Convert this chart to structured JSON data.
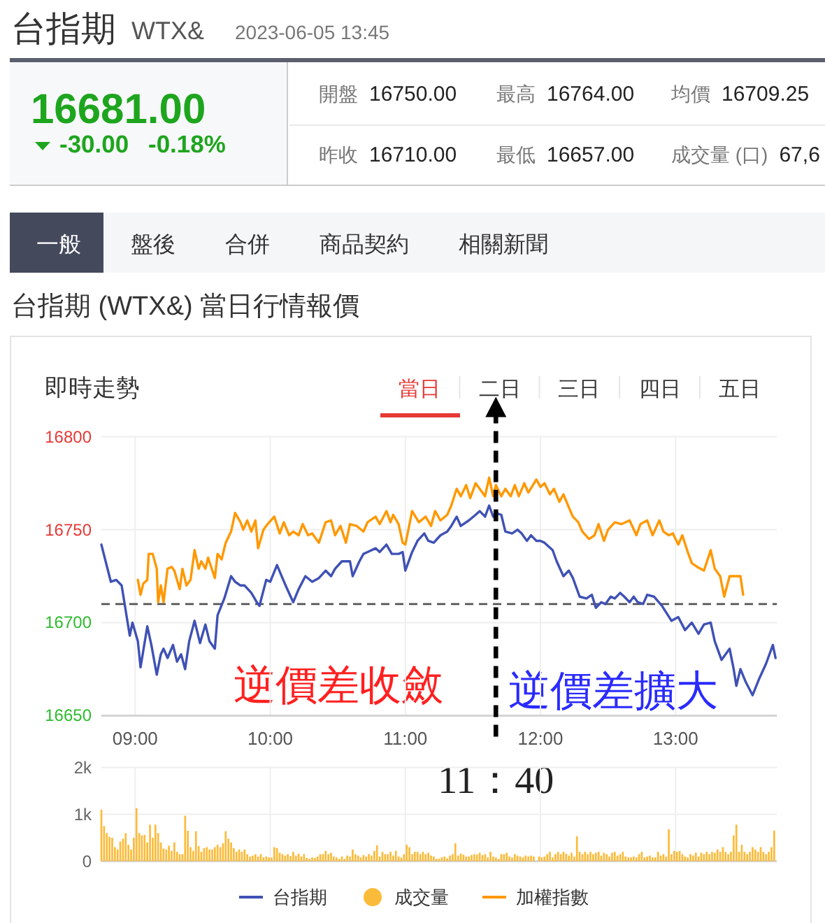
{
  "chart_data": [
    {
      "type": "other",
      "title": "台指期",
      "subtitle": "WTX&",
      "annotations": [
        "2023-06-05 13:45",
        "16681.00",
        "-30.00",
        "-0.18%",
        "開盤",
        "16750.00",
        "最高",
        "16764.00",
        "均價",
        "16709.25",
        "昨收",
        "16710.00",
        "最低",
        "16657.00",
        "成交量 (口)",
        "67,6",
        "一般",
        "盤後",
        "合併",
        "商品契約",
        "相關新聞",
        "台指期 (WTX&) 當日行情報價"
      ]
    },
    {
      "type": "line",
      "title": "即時走勢",
      "annotations": [
        "當日",
        "二日",
        "三日",
        "四日",
        "五日",
        "逆價差收斂",
        "逆價差擴大"
      ],
      "xlim": [
        8.75,
        13.75
      ],
      "xticks": [
        {
          "value": 9,
          "label": "09:00"
        },
        {
          "value": 10,
          "label": "10:00"
        },
        {
          "value": 11,
          "label": "11:00"
        },
        {
          "value": 12,
          "label": "12:00"
        },
        {
          "value": 13,
          "label": "13:00"
        }
      ],
      "ylim": [
        16650,
        16800
      ],
      "yticks": [
        16650,
        16700,
        16750,
        16800
      ],
      "grid": true,
      "legend": "bottom",
      "ref_lines": [
        {
          "axis": "y",
          "value": 16710,
          "color": "#555555",
          "line_style": "dashed"
        },
        {
          "axis": "x",
          "value": 11.67,
          "label": "11：40",
          "color": "#000000",
          "line_style": "dashed"
        }
      ],
      "series": [
        {
          "name": "台指期",
          "color": "#3f51b5",
          "x": [
            8.75,
            8.82,
            8.86,
            8.9,
            8.96,
            8.98,
            9.02,
            9.04,
            9.09,
            9.12,
            9.16,
            9.19,
            9.21,
            9.24,
            9.28,
            9.31,
            9.34,
            9.37,
            9.4,
            9.44,
            9.48,
            9.52,
            9.55,
            9.59,
            9.61,
            9.66,
            9.71,
            9.74,
            9.78,
            9.81,
            9.86,
            9.9,
            9.92,
            9.97,
            10.0,
            10.05,
            10.09,
            10.12,
            10.17,
            10.21,
            10.26,
            10.31,
            10.36,
            10.41,
            10.45,
            10.48,
            10.53,
            10.59,
            10.61,
            10.66,
            10.69,
            10.72,
            10.78,
            10.81,
            10.86,
            10.9,
            10.95,
            10.98,
            11.0,
            11.03,
            11.05,
            11.09,
            11.14,
            11.17,
            11.21,
            11.26,
            11.31,
            11.34,
            11.38,
            11.41,
            11.47,
            11.52,
            11.55,
            11.59,
            11.62,
            11.65,
            11.67,
            11.71,
            11.74,
            11.79,
            11.83,
            11.86,
            11.9,
            11.93,
            11.97,
            12.0,
            12.03,
            12.09,
            12.12,
            12.17,
            12.21,
            12.24,
            12.29,
            12.34,
            12.38,
            12.41,
            12.45,
            12.48,
            12.52,
            12.55,
            12.59,
            12.62,
            12.66,
            12.69,
            12.72,
            12.76,
            12.79,
            12.84,
            12.9,
            12.97,
            13.02,
            13.07,
            13.12,
            13.17,
            13.21,
            13.26,
            13.29,
            13.34,
            13.4,
            13.43,
            13.45,
            13.48,
            13.52,
            13.57,
            13.62,
            13.67,
            13.72,
            13.74
          ],
          "values": [
            16742,
            16722,
            16723,
            16720,
            16693,
            16700,
            16690,
            16676,
            16698,
            16688,
            16672,
            16683,
            16686,
            16681,
            16688,
            16679,
            16683,
            16675,
            16690,
            16701,
            16689,
            16699,
            16690,
            16686,
            16704,
            16713,
            16725,
            16722,
            16720,
            16720,
            16716,
            16711,
            16709,
            16723,
            16722,
            16731,
            16724,
            16719,
            16711,
            16718,
            16725,
            16722,
            16724,
            16728,
            16725,
            16729,
            16733,
            16733,
            16725,
            16733,
            16737,
            16738,
            16740,
            16738,
            16742,
            16737,
            16737,
            16738,
            16728,
            16734,
            16738,
            16744,
            16748,
            16744,
            16743,
            16747,
            16749,
            16752,
            16757,
            16752,
            16755,
            16758,
            16760,
            16757,
            16763,
            16757,
            16759,
            16758,
            16749,
            16748,
            16750,
            16748,
            16744,
            16747,
            16744,
            16744,
            16743,
            16739,
            16733,
            16725,
            16728,
            16724,
            16714,
            16713,
            16715,
            16708,
            16711,
            16710,
            16714,
            16713,
            16716,
            16714,
            16711,
            16714,
            16711,
            16710,
            16715,
            16714,
            16709,
            16701,
            16703,
            16696,
            16700,
            16694,
            16699,
            16700,
            16690,
            16680,
            16686,
            16675,
            16666,
            16675,
            16668,
            16661,
            16670,
            16678,
            16688,
            16681
          ]
        },
        {
          "name": "加權指數",
          "color": "#ff9800",
          "x": [
            9.02,
            9.04,
            9.06,
            9.09,
            9.1,
            9.13,
            9.16,
            9.17,
            9.19,
            9.21,
            9.24,
            9.27,
            9.29,
            9.33,
            9.35,
            9.38,
            9.41,
            9.44,
            9.47,
            9.49,
            9.52,
            9.54,
            9.59,
            9.61,
            9.64,
            9.67,
            9.71,
            9.74,
            9.78,
            9.8,
            9.83,
            9.86,
            9.89,
            9.91,
            9.95,
            9.98,
            10.03,
            10.07,
            10.1,
            10.14,
            10.17,
            10.21,
            10.24,
            10.28,
            10.31,
            10.36,
            10.41,
            10.45,
            10.48,
            10.52,
            10.56,
            10.59,
            10.64,
            10.69,
            10.72,
            10.78,
            10.81,
            10.86,
            10.89,
            10.91,
            10.95,
            10.98,
            11.0,
            11.05,
            11.1,
            11.15,
            11.19,
            11.22,
            11.26,
            11.31,
            11.34,
            11.38,
            11.41,
            11.45,
            11.48,
            11.52,
            11.55,
            11.59,
            11.62,
            11.65,
            11.67,
            11.71,
            11.74,
            11.78,
            11.81,
            11.84,
            11.88,
            11.91,
            11.97,
            12.0,
            12.03,
            12.07,
            12.1,
            12.14,
            12.17,
            12.21,
            12.24,
            12.28,
            12.31,
            12.36,
            12.4,
            12.43,
            12.47,
            12.5,
            12.55,
            12.6,
            12.66,
            12.71,
            12.74,
            12.79,
            12.83,
            12.88,
            12.91,
            12.95,
            12.98,
            13.02,
            13.05,
            13.09,
            13.12,
            13.16,
            13.21,
            13.26,
            13.29,
            13.33,
            13.36,
            13.4,
            13.43,
            13.48,
            13.5
          ],
          "values": [
            16723,
            16715,
            16721,
            16723,
            16737,
            16737,
            16729,
            16711,
            16720,
            16711,
            16729,
            16730,
            16728,
            16718,
            16729,
            16720,
            16723,
            16739,
            16729,
            16733,
            16729,
            16735,
            16724,
            16737,
            16734,
            16743,
            16749,
            16759,
            16754,
            16750,
            16755,
            16749,
            16755,
            16740,
            16750,
            16753,
            16757,
            16748,
            16754,
            16747,
            16749,
            16747,
            16753,
            16747,
            16748,
            16743,
            16754,
            16755,
            16747,
            16752,
            16743,
            16753,
            16752,
            16749,
            16754,
            16757,
            16753,
            16760,
            16754,
            16758,
            16753,
            16743,
            16742,
            16760,
            16754,
            16757,
            16752,
            16760,
            16755,
            16758,
            16763,
            16772,
            16768,
            16774,
            16767,
            16775,
            16772,
            16768,
            16778,
            16768,
            16774,
            16768,
            16772,
            16768,
            16774,
            16768,
            16775,
            16770,
            16777,
            16773,
            16775,
            16769,
            16772,
            16765,
            16769,
            16762,
            16757,
            16754,
            16749,
            16745,
            16747,
            16753,
            16744,
            16750,
            16754,
            16753,
            16755,
            16747,
            16753,
            16755,
            16747,
            16755,
            16749,
            16747,
            16748,
            16742,
            16747,
            16738,
            16732,
            16730,
            16728,
            16739,
            16729,
            16725,
            16714,
            16725,
            16725,
            16725,
            16715
          ]
        }
      ]
    },
    {
      "type": "bar",
      "xlim": [
        8.75,
        13.75
      ],
      "xticks": [
        {
          "value": 9,
          "label": null
        },
        {
          "value": 10,
          "label": null
        },
        {
          "value": 11,
          "label": null
        },
        {
          "value": 12,
          "label": null
        },
        {
          "value": 13,
          "label": null
        }
      ],
      "ylim": [
        0,
        2000
      ],
      "yticks": [
        0,
        {
          "value": 1000,
          "label": "1k"
        },
        {
          "value": 2000,
          "label": "2k"
        }
      ],
      "grid": true,
      "tick_labels": "y",
      "legend": "bottom",
      "x": [
        8.75,
        8.77,
        8.79,
        8.81,
        8.83,
        8.85,
        8.87,
        8.89,
        8.91,
        8.93,
        8.95,
        8.97,
        8.99,
        9.01,
        9.03,
        9.05,
        9.07,
        9.09,
        9.11,
        9.13,
        9.15,
        9.17,
        9.19,
        9.21,
        9.23,
        9.25,
        9.27,
        9.29,
        9.31,
        9.33,
        9.35,
        9.37,
        9.39,
        9.41,
        9.43,
        9.45,
        9.47,
        9.49,
        9.51,
        9.53,
        9.55,
        9.57,
        9.59,
        9.61,
        9.63,
        9.65,
        9.67,
        9.69,
        9.71,
        9.73,
        9.75,
        9.77,
        9.79,
        9.81,
        9.83,
        9.85,
        9.87,
        9.89,
        9.91,
        9.93,
        9.95,
        9.97,
        9.99,
        10.01,
        10.03,
        10.05,
        10.07,
        10.09,
        10.11,
        10.13,
        10.15,
        10.17,
        10.19,
        10.21,
        10.23,
        10.25,
        10.27,
        10.29,
        10.31,
        10.33,
        10.35,
        10.37,
        10.39,
        10.41,
        10.43,
        10.45,
        10.47,
        10.49,
        10.51,
        10.53,
        10.55,
        10.57,
        10.59,
        10.61,
        10.63,
        10.65,
        10.67,
        10.69,
        10.71,
        10.73,
        10.75,
        10.77,
        10.79,
        10.81,
        10.83,
        10.85,
        10.87,
        10.89,
        10.91,
        10.93,
        10.95,
        10.97,
        10.99,
        11.01,
        11.03,
        11.05,
        11.07,
        11.09,
        11.11,
        11.13,
        11.15,
        11.17,
        11.19,
        11.21,
        11.23,
        11.25,
        11.27,
        11.29,
        11.31,
        11.33,
        11.35,
        11.37,
        11.39,
        11.41,
        11.43,
        11.45,
        11.47,
        11.49,
        11.51,
        11.53,
        11.55,
        11.57,
        11.59,
        11.61,
        11.63,
        11.65,
        11.67,
        11.69,
        11.71,
        11.73,
        11.75,
        11.77,
        11.79,
        11.81,
        11.83,
        11.85,
        11.87,
        11.89,
        11.91,
        11.93,
        11.95,
        11.97,
        11.99,
        12.01,
        12.03,
        12.05,
        12.07,
        12.09,
        12.11,
        12.13,
        12.15,
        12.17,
        12.19,
        12.21,
        12.23,
        12.25,
        12.27,
        12.29,
        12.31,
        12.33,
        12.35,
        12.37,
        12.39,
        12.41,
        12.43,
        12.45,
        12.47,
        12.49,
        12.51,
        12.53,
        12.55,
        12.57,
        12.59,
        12.61,
        12.63,
        12.65,
        12.67,
        12.69,
        12.71,
        12.73,
        12.75,
        12.77,
        12.79,
        12.81,
        12.83,
        12.85,
        12.87,
        12.89,
        12.91,
        12.93,
        12.95,
        12.97,
        12.99,
        13.01,
        13.03,
        13.05,
        13.07,
        13.09,
        13.11,
        13.13,
        13.15,
        13.17,
        13.19,
        13.21,
        13.23,
        13.25,
        13.27,
        13.29,
        13.31,
        13.33,
        13.35,
        13.37,
        13.39,
        13.41,
        13.43,
        13.45,
        13.47,
        13.49,
        13.51,
        13.53,
        13.55,
        13.57,
        13.59,
        13.61,
        13.63,
        13.65,
        13.67,
        13.69,
        13.71,
        13.73
      ],
      "series": [
        {
          "name": "成交量",
          "color": "#fbbb3a",
          "values": [
            1100,
            750,
            600,
            520,
            500,
            300,
            250,
            420,
            480,
            600,
            350,
            250,
            500,
            1130,
            600,
            550,
            560,
            400,
            780,
            500,
            780,
            600,
            400,
            270,
            250,
            330,
            220,
            400,
            200,
            150,
            150,
            970,
            650,
            300,
            220,
            640,
            320,
            200,
            280,
            300,
            250,
            250,
            300,
            350,
            300,
            380,
            640,
            480,
            400,
            280,
            200,
            250,
            200,
            250,
            150,
            100,
            120,
            150,
            100,
            150,
            80,
            100,
            80,
            80,
            300,
            280,
            180,
            150,
            120,
            150,
            110,
            200,
            120,
            160,
            100,
            150,
            70,
            50,
            80,
            70,
            100,
            150,
            150,
            220,
            150,
            180,
            100,
            80,
            50,
            100,
            50,
            120,
            100,
            250,
            150,
            120,
            80,
            130,
            100,
            150,
            120,
            220,
            340,
            100,
            200,
            150,
            150,
            200,
            120,
            220,
            100,
            80,
            150,
            350,
            300,
            150,
            200,
            200,
            150,
            200,
            150,
            180,
            120,
            100,
            50,
            50,
            80,
            100,
            60,
            120,
            150,
            380,
            120,
            160,
            140,
            100,
            100,
            130,
            150,
            140,
            180,
            130,
            150,
            80,
            200,
            100,
            80,
            50,
            150,
            150,
            180,
            100,
            80,
            150,
            120,
            100,
            80,
            120,
            100,
            120,
            100,
            null,
            100,
            80,
            100,
            150,
            200,
            80,
            150,
            200,
            150,
            200,
            160,
            120,
            180,
            100,
            530,
            200,
            150,
            200,
            150,
            200,
            150,
            180,
            200,
            120,
            180,
            150,
            100,
            180,
            200,
            120,
            150,
            200,
            100,
            80,
            80,
            100,
            80,
            150,
            200,
            80,
            100,
            120,
            80,
            80,
            200,
            120,
            150,
            100,
            680,
            150,
            220,
            200,
            220,
            150,
            100,
            80,
            150,
            120,
            180,
            100,
            180,
            150,
            200,
            150,
            200,
            180,
            250,
            200,
            300,
            200,
            150,
            200,
            550,
            780,
            200,
            350,
            200,
            150,
            200,
            300,
            250,
            200,
            300,
            200,
            150,
            200,
            300,
            650
          ]
        }
      ]
    }
  ]
}
